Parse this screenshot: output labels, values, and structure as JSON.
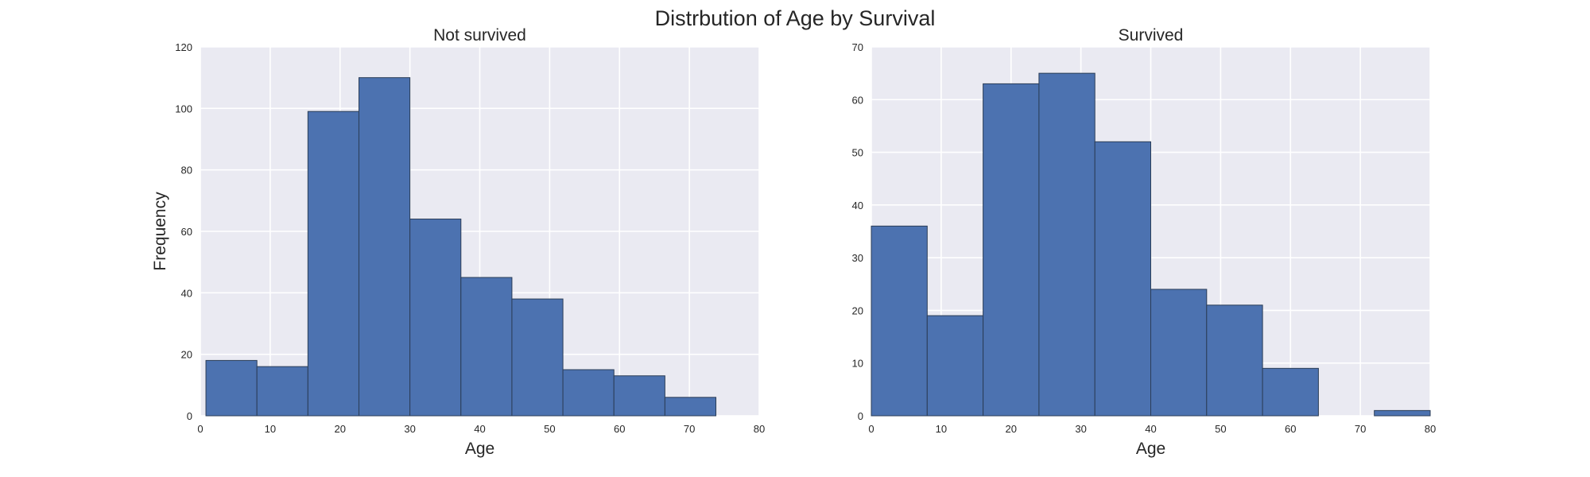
{
  "figure_title": "Distrbution of Age by Survival",
  "colors": {
    "background": "#eaeaf2",
    "bar": "#4c72b0",
    "bar_edge": "#2b3d57",
    "grid": "#ffffff"
  },
  "chart_data": [
    {
      "type": "bar",
      "title": "Not survived",
      "xlabel": "Age",
      "ylabel": "Frequency",
      "xlim": [
        0,
        80
      ],
      "ylim": [
        0,
        120
      ],
      "xticks": [
        0,
        10,
        20,
        30,
        40,
        50,
        60,
        70,
        80
      ],
      "yticks": [
        0,
        20,
        40,
        60,
        80,
        100,
        120
      ],
      "grid": true,
      "bins": [
        {
          "x0": 0.8,
          "x1": 8.1,
          "value": 18
        },
        {
          "x0": 8.1,
          "x1": 15.4,
          "value": 16
        },
        {
          "x0": 15.4,
          "x1": 22.7,
          "value": 99
        },
        {
          "x0": 22.7,
          "x1": 30.0,
          "value": 110
        },
        {
          "x0": 30.0,
          "x1": 37.3,
          "value": 64
        },
        {
          "x0": 37.3,
          "x1": 44.6,
          "value": 45
        },
        {
          "x0": 44.6,
          "x1": 51.9,
          "value": 38
        },
        {
          "x0": 51.9,
          "x1": 59.2,
          "value": 15
        },
        {
          "x0": 59.2,
          "x1": 66.5,
          "value": 13
        },
        {
          "x0": 66.5,
          "x1": 73.8,
          "value": 6
        }
      ]
    },
    {
      "type": "bar",
      "title": "Survived",
      "xlabel": "Age",
      "ylabel": "",
      "xlim": [
        0,
        80
      ],
      "ylim": [
        0,
        70
      ],
      "xticks": [
        0,
        10,
        20,
        30,
        40,
        50,
        60,
        70,
        80
      ],
      "yticks": [
        0,
        10,
        20,
        30,
        40,
        50,
        60,
        70
      ],
      "grid": true,
      "bins": [
        {
          "x0": 0.0,
          "x1": 8.0,
          "value": 36
        },
        {
          "x0": 8.0,
          "x1": 16.0,
          "value": 19
        },
        {
          "x0": 16.0,
          "x1": 24.0,
          "value": 63
        },
        {
          "x0": 24.0,
          "x1": 32.0,
          "value": 65
        },
        {
          "x0": 32.0,
          "x1": 40.0,
          "value": 52
        },
        {
          "x0": 40.0,
          "x1": 48.0,
          "value": 24
        },
        {
          "x0": 48.0,
          "x1": 56.0,
          "value": 21
        },
        {
          "x0": 56.0,
          "x1": 64.0,
          "value": 9
        },
        {
          "x0": 64.0,
          "x1": 72.0,
          "value": 0
        },
        {
          "x0": 72.0,
          "x1": 80.0,
          "value": 1
        }
      ]
    }
  ]
}
